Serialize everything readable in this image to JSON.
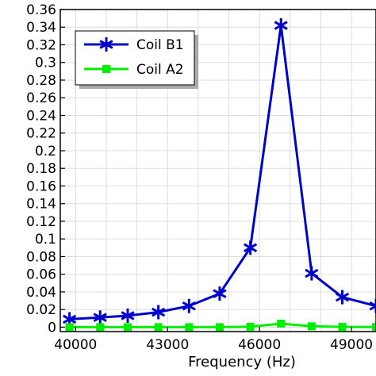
{
  "chart_data": {
    "type": "line",
    "title": "",
    "xlabel": "Frequency (Hz)",
    "ylabel": "",
    "xlim": [
      39500,
      49800
    ],
    "ylim": [
      -0.005,
      0.36
    ],
    "xticks": [
      40000,
      43000,
      46000,
      49000
    ],
    "xtick_labels": [
      "40000",
      "43000",
      "46000",
      "49000"
    ],
    "yticks": [
      0,
      0.02,
      0.04,
      0.06,
      0.08,
      0.1,
      0.12,
      0.14,
      0.16,
      0.18,
      0.2,
      0.22,
      0.24,
      0.26,
      0.28,
      0.3,
      0.32,
      0.34,
      0.36
    ],
    "ytick_labels": [
      "0",
      "0.02",
      "0.04",
      "0.06",
      "0.08",
      "0.1",
      "0.12",
      "0.14",
      "0.16",
      "0.18",
      "0.2",
      "0.22",
      "0.24",
      "0.26",
      "0.28",
      "0.3",
      "0.32",
      "0.34",
      "0.36"
    ],
    "grid": true,
    "legend_position": "top-left",
    "series": [
      {
        "name": "Coil B1",
        "color": "#0000cc",
        "marker": "asterisk",
        "x": [
          39800,
          40800,
          41700,
          42700,
          43700,
          44700,
          45700,
          46700,
          47700,
          48700,
          49800
        ],
        "y": [
          0.009,
          0.011,
          0.013,
          0.017,
          0.024,
          0.038,
          0.09,
          0.342,
          0.061,
          0.034,
          0.024
        ]
      },
      {
        "name": "Coil A2",
        "color": "#00ee00",
        "marker": "square",
        "x": [
          39800,
          40800,
          41700,
          42700,
          43700,
          44700,
          45700,
          46700,
          47700,
          48700,
          49800
        ],
        "y": [
          0.0,
          0.0,
          0.0,
          0.0,
          0.0,
          0.0,
          0.0005,
          0.004,
          0.001,
          0.0003,
          0.0002
        ]
      }
    ]
  }
}
